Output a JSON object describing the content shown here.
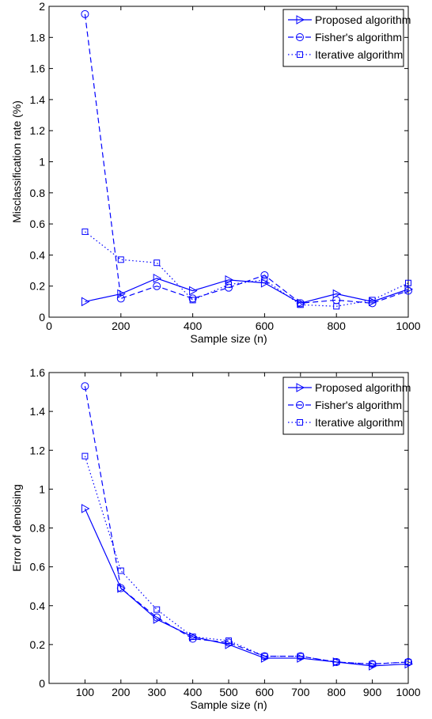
{
  "chart_data": [
    {
      "type": "line",
      "title": "",
      "xlabel": "Sample size (n)",
      "ylabel": "Misclassification rate (%)",
      "xlim": [
        0,
        1000
      ],
      "ylim": [
        0,
        2
      ],
      "xticks": [
        0,
        200,
        400,
        600,
        800,
        1000
      ],
      "xtick_labels": [
        "0",
        "200",
        "400",
        "600",
        "800",
        "1000"
      ],
      "yticks": [
        0,
        0.2,
        0.4,
        0.6,
        0.8,
        1,
        1.2,
        1.4,
        1.6,
        1.8,
        2
      ],
      "ytick_labels": [
        "0",
        "0.2",
        "0.4",
        "0.6",
        "0.8",
        "1",
        "1.2",
        "1.4",
        "1.6",
        "1.8",
        "2"
      ],
      "grid": false,
      "legend_position": "top-right",
      "x": [
        100,
        200,
        300,
        400,
        500,
        600,
        700,
        800,
        900,
        1000
      ],
      "series": [
        {
          "name": "Proposed algorithm",
          "color": "#0000ff",
          "line": "solid",
          "marker": "triangle-right",
          "values": [
            0.1,
            0.15,
            0.25,
            0.17,
            0.24,
            0.22,
            0.09,
            0.15,
            0.1,
            0.18
          ]
        },
        {
          "name": "Fisher's algorithm",
          "color": "#0000ff",
          "line": "dashed",
          "marker": "circle",
          "values": [
            1.95,
            0.12,
            0.2,
            0.12,
            0.19,
            0.27,
            0.09,
            0.11,
            0.09,
            0.17
          ]
        },
        {
          "name": "Iterative algorithm",
          "color": "#0000ff",
          "line": "dotted",
          "marker": "square",
          "values": [
            0.55,
            0.37,
            0.35,
            0.11,
            0.21,
            0.24,
            0.08,
            0.07,
            0.11,
            0.22
          ]
        }
      ]
    },
    {
      "type": "line",
      "title": "",
      "xlabel": "Sample size (n)",
      "ylabel": "Error of denoising",
      "xlim": [
        0,
        1000
      ],
      "ylim": [
        0,
        1.6
      ],
      "xticks": [
        100,
        200,
        300,
        400,
        500,
        600,
        700,
        800,
        900,
        1000
      ],
      "xtick_labels": [
        "100",
        "200",
        "300",
        "400",
        "500",
        "600",
        "700",
        "800",
        "900",
        "1000"
      ],
      "yticks": [
        0,
        0.2,
        0.4,
        0.6,
        0.8,
        1,
        1.2,
        1.4,
        1.6
      ],
      "ytick_labels": [
        "0",
        "0.2",
        "0.4",
        "0.6",
        "0.8",
        "1",
        "1.2",
        "1.4",
        "1.6"
      ],
      "grid": false,
      "legend_position": "top-right",
      "x": [
        100,
        200,
        300,
        400,
        500,
        600,
        700,
        800,
        900,
        1000
      ],
      "series": [
        {
          "name": "Proposed algorithm",
          "color": "#0000ff",
          "line": "solid",
          "marker": "triangle-right",
          "values": [
            0.9,
            0.49,
            0.33,
            0.24,
            0.2,
            0.13,
            0.13,
            0.11,
            0.09,
            0.1
          ]
        },
        {
          "name": "Fisher's algorithm",
          "color": "#0000ff",
          "line": "dashed",
          "marker": "circle",
          "values": [
            1.53,
            0.49,
            0.34,
            0.23,
            0.21,
            0.14,
            0.14,
            0.11,
            0.1,
            0.11
          ]
        },
        {
          "name": "Iterative algorithm",
          "color": "#0000ff",
          "line": "dotted",
          "marker": "square",
          "values": [
            1.17,
            0.58,
            0.38,
            0.24,
            0.22,
            0.14,
            0.14,
            0.11,
            0.1,
            0.11
          ]
        }
      ]
    }
  ]
}
